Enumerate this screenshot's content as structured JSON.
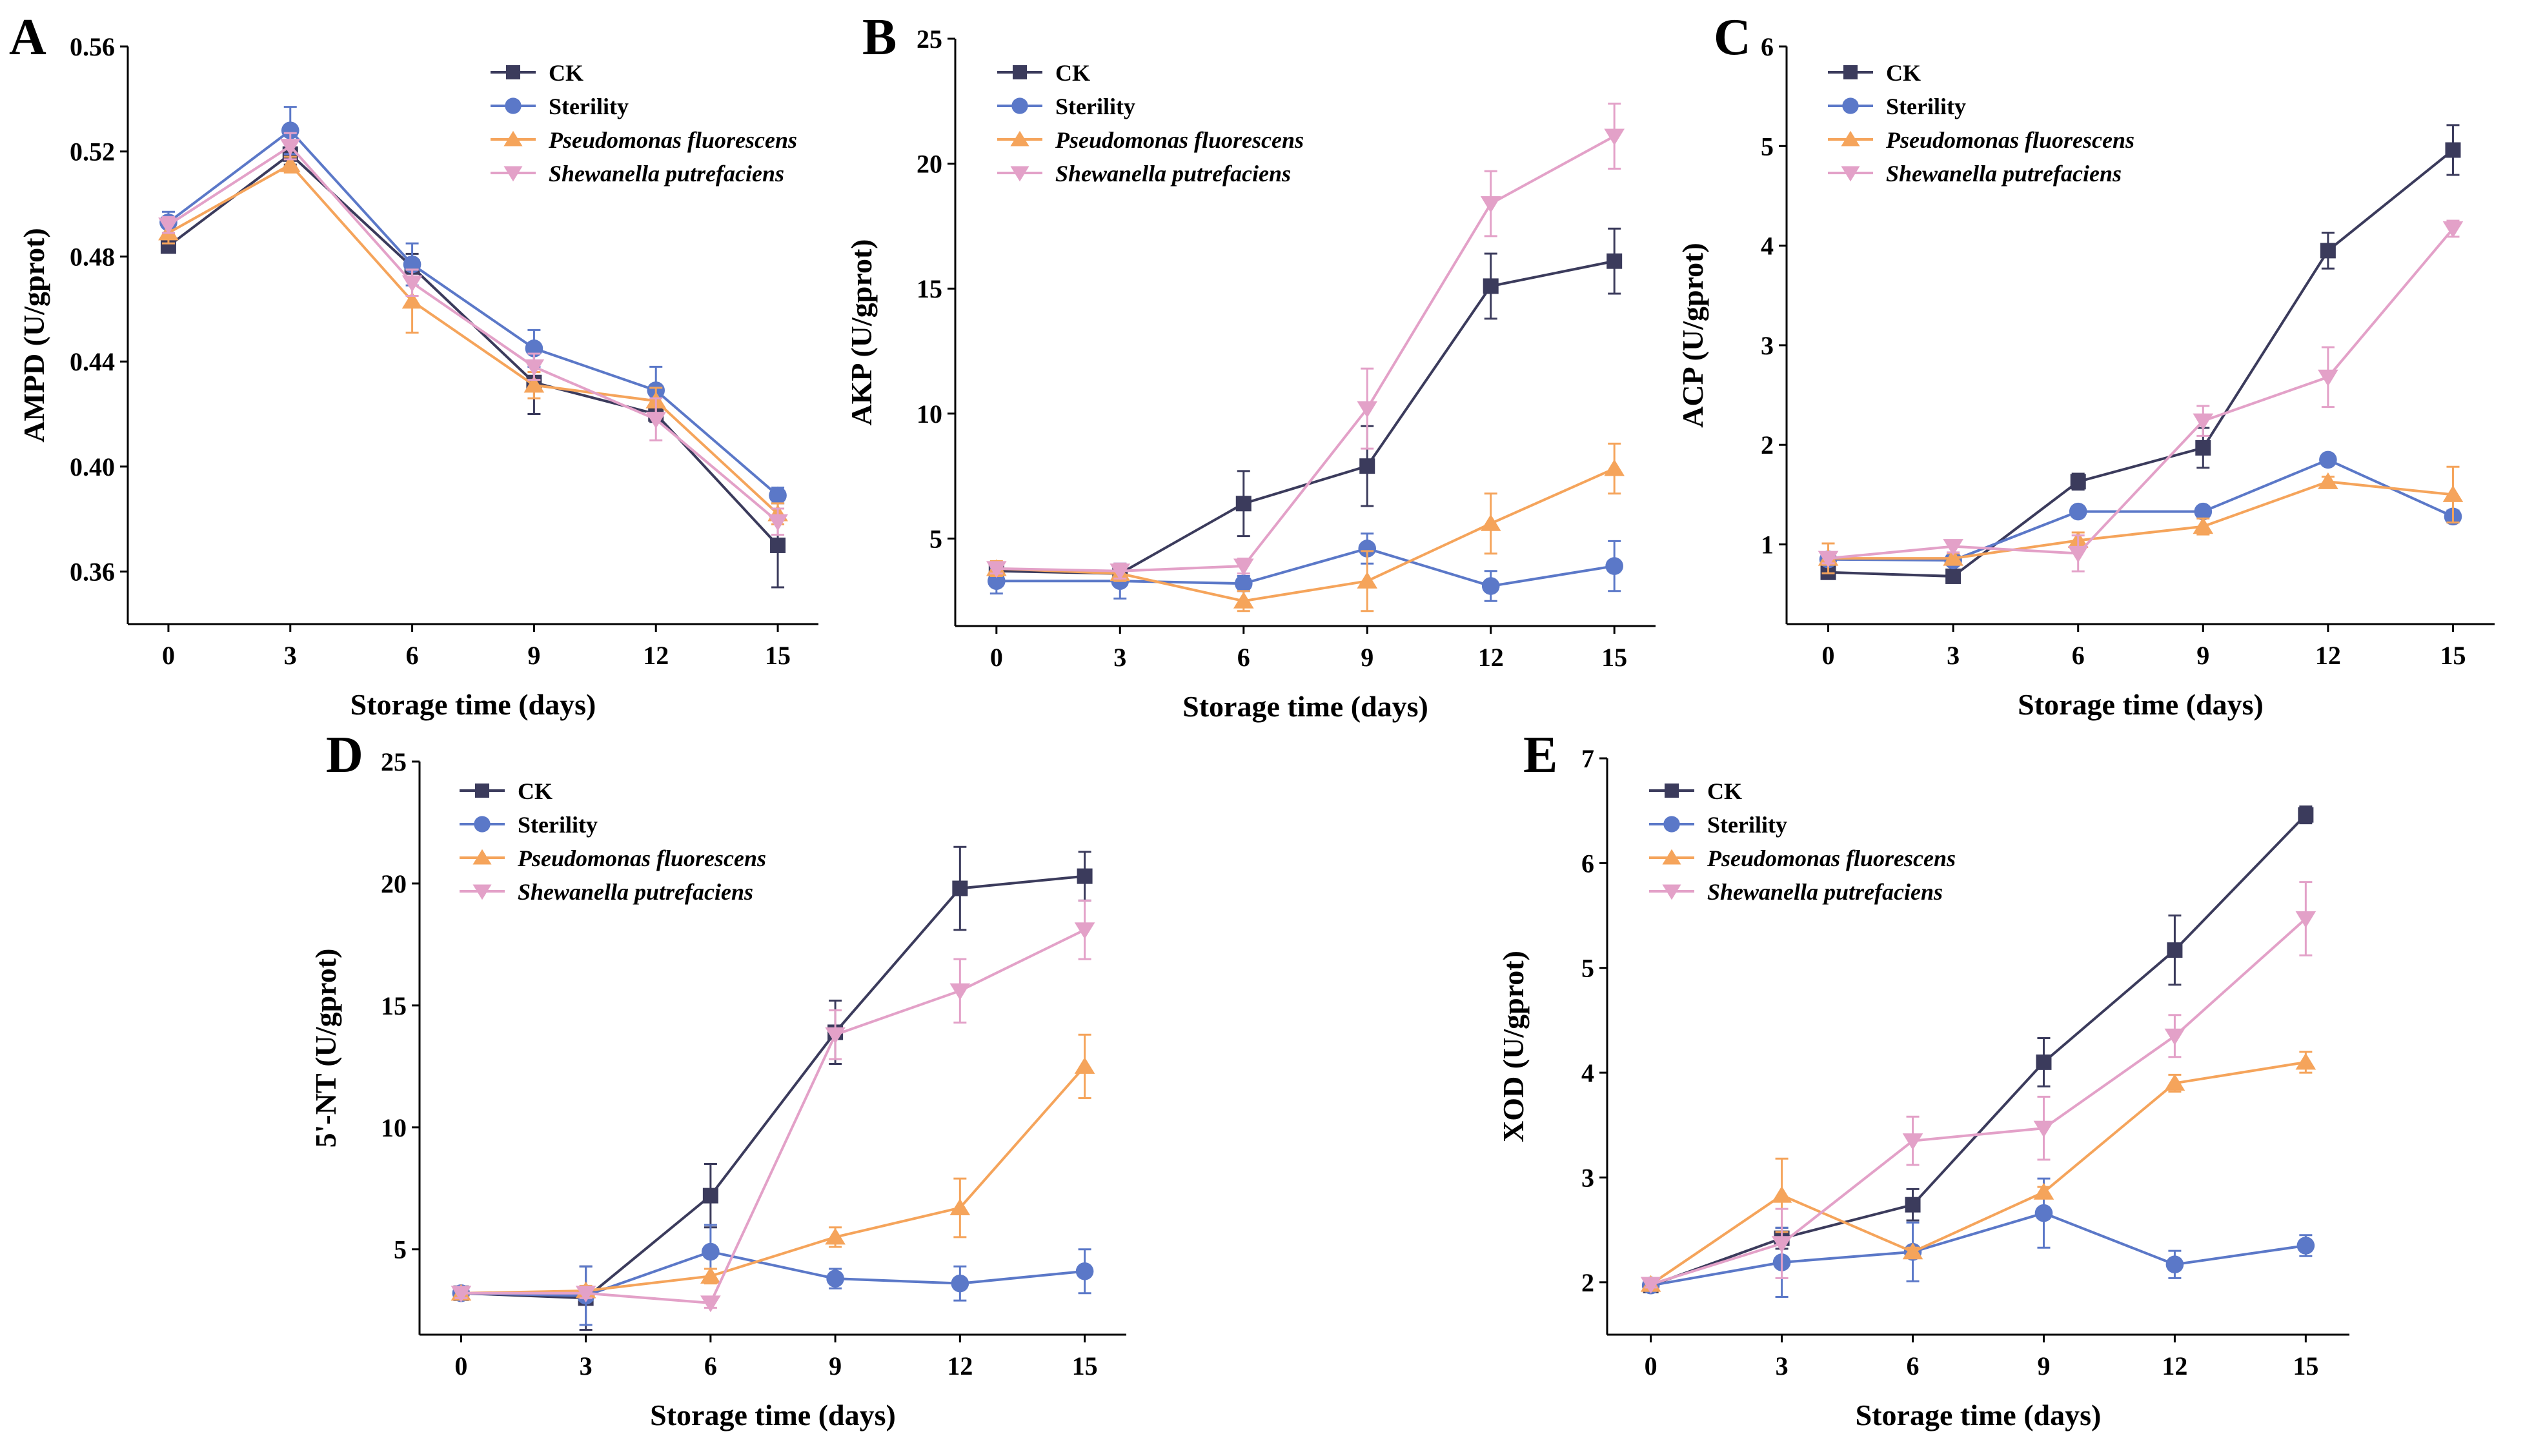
{
  "colors": {
    "CK": "#3b3b5c",
    "Sterility": "#5b78c8",
    "Pseudomonas fluorescens": "#f5a45b",
    "Shewanella putrefaciens": "#e3a1c8"
  },
  "legend_italic": [
    "Pseudomonas fluorescens",
    "Shewanella putrefaciens"
  ],
  "chart_data": [
    {
      "type": "line",
      "panel": "A",
      "xlabel": "Storage time (days)",
      "ylabel": "AMPD (U/gprot)",
      "x": [
        0,
        3,
        6,
        9,
        12,
        15
      ],
      "xlim": [
        -1,
        16
      ],
      "ylim": [
        0.34,
        0.56
      ],
      "yticks": [
        0.36,
        0.4,
        0.44,
        0.48,
        0.52,
        0.56
      ],
      "ytick_labels": [
        "0.36",
        "0.40",
        "0.44",
        "0.48",
        "0.52",
        "0.56"
      ],
      "legend_position": "top-right",
      "series": [
        {
          "name": "CK",
          "marker": "square",
          "values": [
            0.484,
            0.519,
            0.476,
            0.432,
            0.42,
            0.37
          ],
          "errors": [
            0.002,
            0.004,
            0.005,
            0.012,
            0.003,
            0.016
          ]
        },
        {
          "name": "Sterility",
          "marker": "circle",
          "values": [
            0.493,
            0.528,
            0.477,
            0.445,
            0.429,
            0.389
          ],
          "errors": [
            0.004,
            0.009,
            0.008,
            0.007,
            0.009,
            0.003
          ]
        },
        {
          "name": "Pseudomonas fluorescens",
          "marker": "triangle-up",
          "values": [
            0.489,
            0.515,
            0.463,
            0.431,
            0.425,
            0.382
          ],
          "errors": [
            0.004,
            0.003,
            0.012,
            0.005,
            0.005,
            0.004
          ]
        },
        {
          "name": "Shewanella putrefaciens",
          "marker": "triangle-down",
          "values": [
            0.492,
            0.522,
            0.47,
            0.438,
            0.418,
            0.379
          ],
          "errors": [
            0.003,
            0.005,
            0.005,
            0.005,
            0.008,
            0.005
          ]
        }
      ]
    },
    {
      "type": "line",
      "panel": "B",
      "xlabel": "Storage time (days)",
      "ylabel": "AKP (U/gprot)",
      "x": [
        0,
        3,
        6,
        9,
        12,
        15
      ],
      "xlim": [
        -1,
        16
      ],
      "ylim": [
        1.5,
        25
      ],
      "yticks": [
        5,
        10,
        15,
        20,
        25
      ],
      "ytick_labels": [
        "5",
        "10",
        "15",
        "20",
        "25"
      ],
      "legend_position": "top-right",
      "series": [
        {
          "name": "CK",
          "marker": "square",
          "values": [
            3.7,
            3.6,
            6.4,
            7.9,
            15.1,
            16.1
          ],
          "errors": [
            0.3,
            0.3,
            1.3,
            1.6,
            1.3,
            1.3
          ]
        },
        {
          "name": "Sterility",
          "marker": "circle",
          "values": [
            3.3,
            3.3,
            3.2,
            4.6,
            3.1,
            3.9
          ],
          "errors": [
            0.5,
            0.7,
            0.3,
            0.6,
            0.6,
            1.0
          ]
        },
        {
          "name": "Pseudomonas fluorescens",
          "marker": "triangle-up",
          "values": [
            3.8,
            3.6,
            2.5,
            3.3,
            5.6,
            7.8
          ],
          "errors": [
            0.3,
            0.3,
            0.4,
            1.2,
            1.2,
            1.0
          ]
        },
        {
          "name": "Shewanella putrefaciens",
          "marker": "triangle-down",
          "values": [
            3.8,
            3.7,
            3.9,
            10.2,
            18.4,
            21.1
          ],
          "errors": [
            0.2,
            0.3,
            0.3,
            1.6,
            1.3,
            1.3
          ]
        }
      ]
    },
    {
      "type": "line",
      "panel": "C",
      "xlabel": "Storage time (days)",
      "ylabel": "ACP (U/gprot)",
      "x": [
        0,
        3,
        6,
        9,
        12,
        15
      ],
      "xlim": [
        -1,
        16
      ],
      "ylim": [
        0.2,
        6
      ],
      "yticks": [
        1,
        2,
        3,
        4,
        5,
        6
      ],
      "ytick_labels": [
        "1",
        "2",
        "3",
        "4",
        "5",
        "6"
      ],
      "legend_position": "top-right",
      "series": [
        {
          "name": "CK",
          "marker": "square",
          "values": [
            0.72,
            0.68,
            1.63,
            1.97,
            3.95,
            4.96
          ],
          "errors": [
            0.06,
            0.04,
            0.08,
            0.2,
            0.18,
            0.25
          ]
        },
        {
          "name": "Sterility",
          "marker": "circle",
          "values": [
            0.85,
            0.84,
            1.33,
            1.33,
            1.85,
            1.28
          ],
          "errors": [
            0.05,
            0.04,
            0.05,
            0.03,
            0.05,
            0.06
          ]
        },
        {
          "name": "Pseudomonas fluorescens",
          "marker": "triangle-up",
          "values": [
            0.86,
            0.86,
            1.04,
            1.18,
            1.63,
            1.5
          ],
          "errors": [
            0.15,
            0.05,
            0.08,
            0.08,
            0.05,
            0.28
          ]
        },
        {
          "name": "Shewanella putrefaciens",
          "marker": "triangle-down",
          "values": [
            0.86,
            0.98,
            0.91,
            2.24,
            2.68,
            4.17
          ],
          "errors": [
            0.05,
            0.06,
            0.18,
            0.15,
            0.3,
            0.08
          ]
        }
      ]
    },
    {
      "type": "line",
      "panel": "D",
      "xlabel": "Storage time (days)",
      "ylabel": "5'-NT (U/gprot)",
      "x": [
        0,
        3,
        6,
        9,
        12,
        15
      ],
      "xlim": [
        -1,
        16
      ],
      "ylim": [
        1.5,
        25
      ],
      "yticks": [
        5,
        10,
        15,
        20,
        25
      ],
      "ytick_labels": [
        "5",
        "10",
        "15",
        "20",
        "25"
      ],
      "legend_position": "top-left",
      "series": [
        {
          "name": "CK",
          "marker": "square",
          "values": [
            3.2,
            3.0,
            7.2,
            13.9,
            19.8,
            20.3
          ],
          "errors": [
            0.2,
            1.3,
            1.3,
            1.3,
            1.7,
            1.0
          ]
        },
        {
          "name": "Sterility",
          "marker": "circle",
          "values": [
            3.2,
            3.1,
            4.9,
            3.8,
            3.6,
            4.1
          ],
          "errors": [
            0.2,
            1.2,
            1.1,
            0.4,
            0.7,
            0.9
          ]
        },
        {
          "name": "Pseudomonas fluorescens",
          "marker": "triangle-up",
          "values": [
            3.2,
            3.3,
            3.9,
            5.5,
            6.7,
            12.5
          ],
          "errors": [
            0.2,
            0.2,
            0.3,
            0.4,
            1.2,
            1.3
          ]
        },
        {
          "name": "Shewanella putrefaciens",
          "marker": "triangle-down",
          "values": [
            3.2,
            3.2,
            2.8,
            13.8,
            15.6,
            18.1
          ],
          "errors": [
            0.2,
            0.2,
            0.2,
            1.0,
            1.3,
            1.2
          ]
        }
      ]
    },
    {
      "type": "line",
      "panel": "E",
      "xlabel": "Storage time (days)",
      "ylabel": "XOD (U/gprot)",
      "x": [
        0,
        3,
        6,
        9,
        12,
        15
      ],
      "xlim": [
        -1,
        16
      ],
      "ylim": [
        1.5,
        7
      ],
      "yticks": [
        2,
        3,
        4,
        5,
        6,
        7
      ],
      "ytick_labels": [
        "2",
        "3",
        "4",
        "5",
        "6",
        "7"
      ],
      "legend_position": "top-left",
      "series": [
        {
          "name": "CK",
          "marker": "square",
          "values": [
            1.97,
            2.42,
            2.74,
            4.1,
            5.17,
            6.46
          ],
          "errors": [
            0.03,
            0.1,
            0.15,
            0.23,
            0.33,
            0.08
          ]
        },
        {
          "name": "Sterility",
          "marker": "circle",
          "values": [
            1.97,
            2.19,
            2.29,
            2.66,
            2.17,
            2.35
          ],
          "errors": [
            0.03,
            0.33,
            0.28,
            0.33,
            0.13,
            0.1
          ]
        },
        {
          "name": "Pseudomonas fluorescens",
          "marker": "triangle-up",
          "values": [
            1.98,
            2.83,
            2.29,
            2.86,
            3.9,
            4.1
          ],
          "errors": [
            0.03,
            0.35,
            0.04,
            0.05,
            0.08,
            0.1
          ]
        },
        {
          "name": "Shewanella putrefaciens",
          "marker": "triangle-down",
          "values": [
            1.98,
            2.37,
            3.35,
            3.47,
            4.35,
            5.47
          ],
          "errors": [
            0.03,
            0.33,
            0.23,
            0.3,
            0.2,
            0.35
          ]
        }
      ]
    }
  ]
}
